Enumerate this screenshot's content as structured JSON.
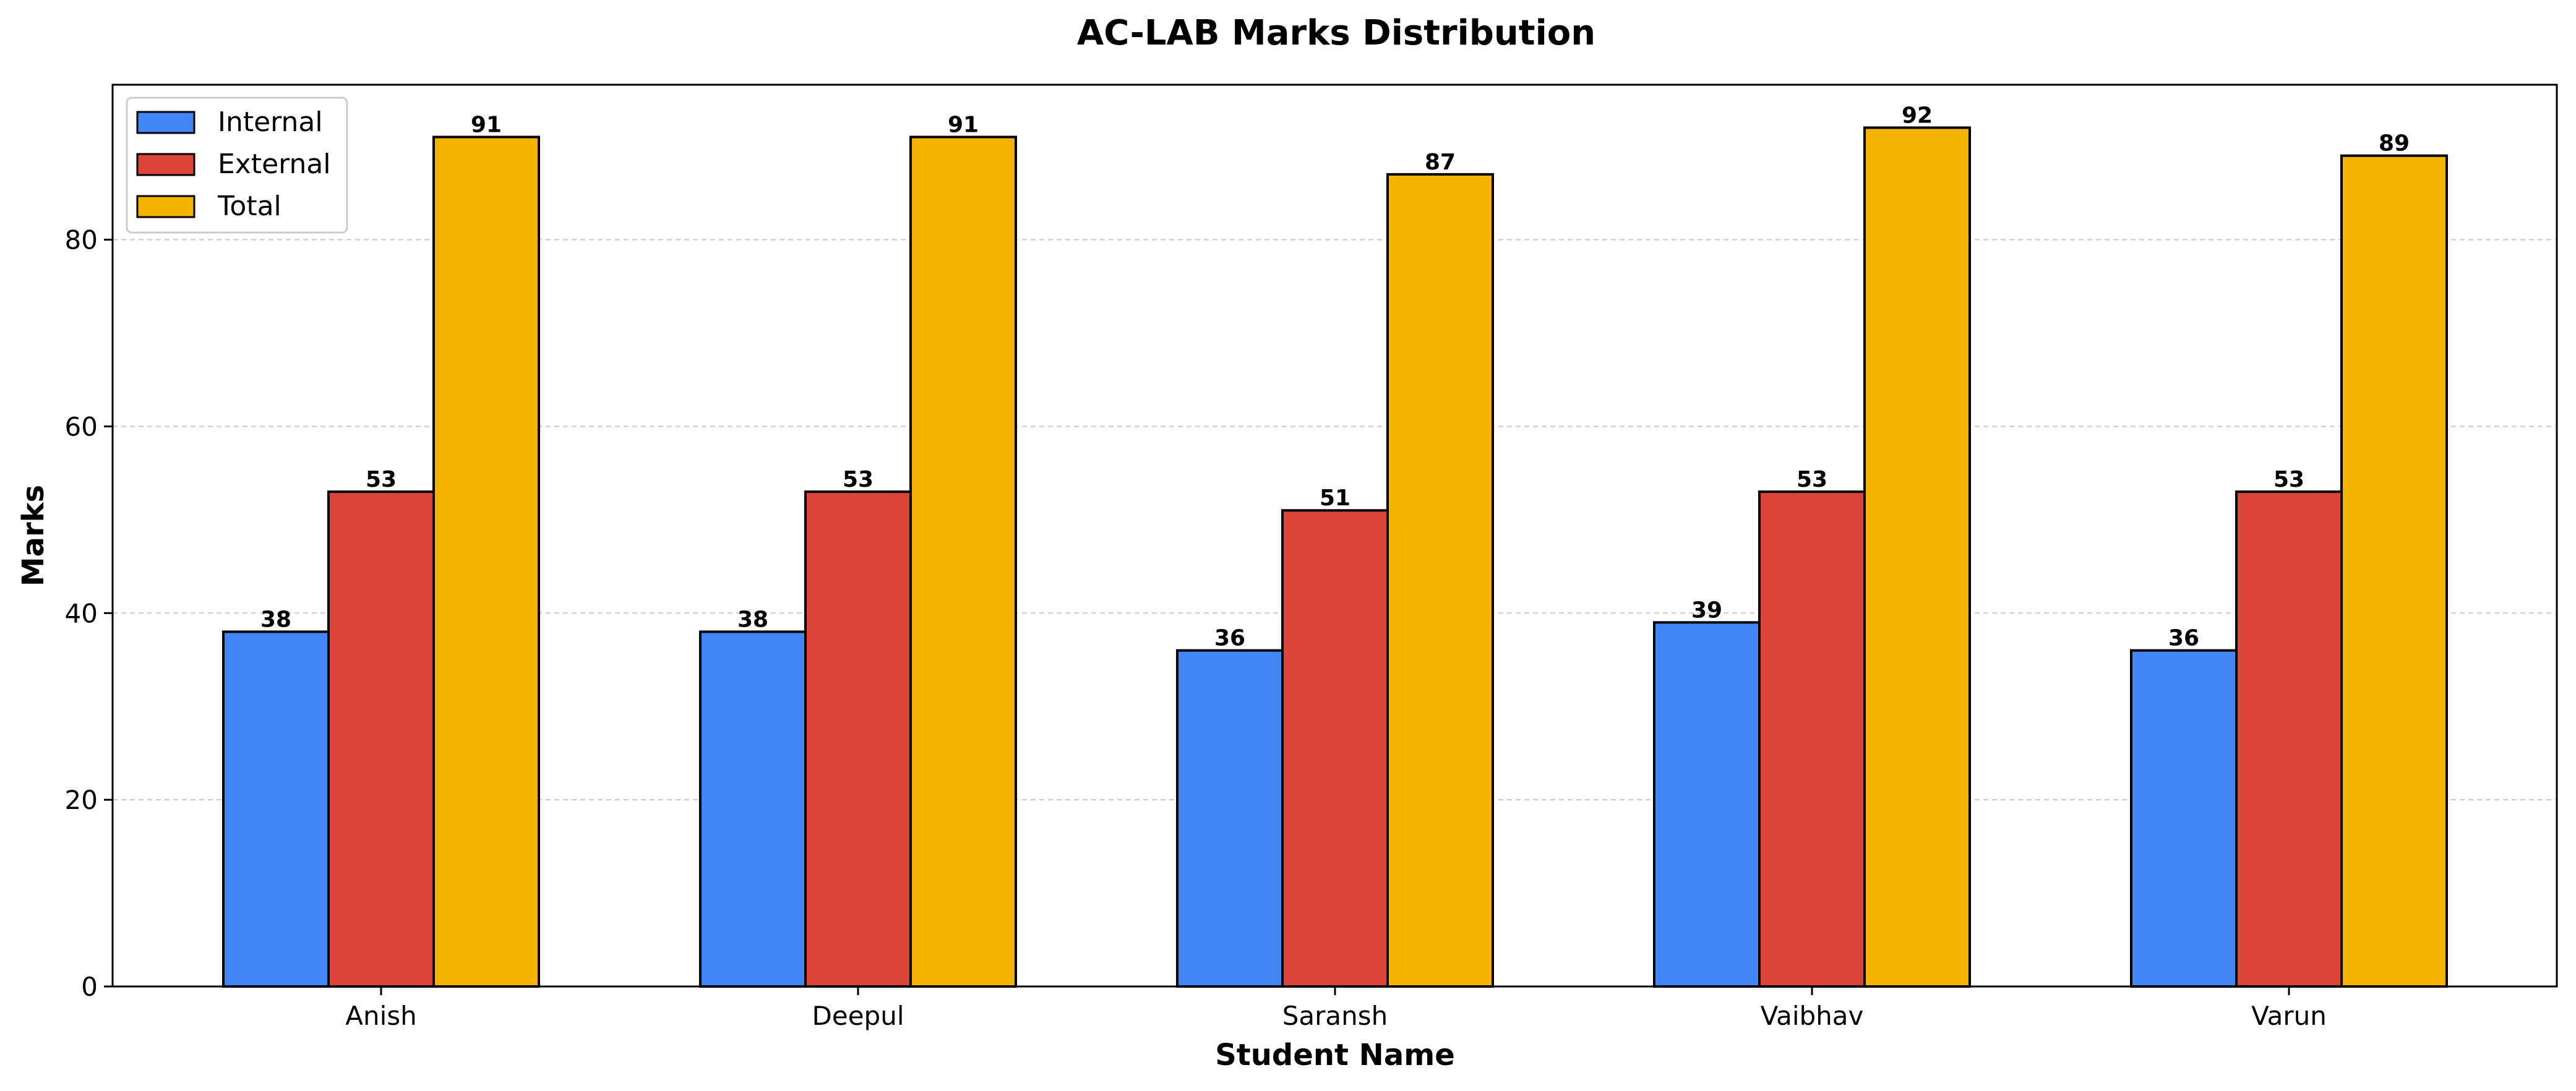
{
  "chart_data": {
    "type": "bar",
    "title": "AC-LAB Marks Distribution",
    "xlabel": "Student Name",
    "ylabel": "Marks",
    "categories": [
      "Anish",
      "Deepul",
      "Saransh",
      "Vaibhav",
      "Varun"
    ],
    "series": [
      {
        "name": "Internal",
        "color": "#4285F4",
        "values": [
          38,
          38,
          36,
          39,
          36
        ]
      },
      {
        "name": "External",
        "color": "#DB4437",
        "values": [
          53,
          53,
          51,
          53,
          53
        ]
      },
      {
        "name": "Total",
        "color": "#F4B400",
        "values": [
          91,
          91,
          87,
          92,
          89
        ]
      }
    ],
    "ylim": [
      0,
      96.6
    ],
    "yticks": [
      0,
      20,
      40,
      60,
      80
    ],
    "grid": true,
    "legend_position": "top-left",
    "data_labels": true
  }
}
